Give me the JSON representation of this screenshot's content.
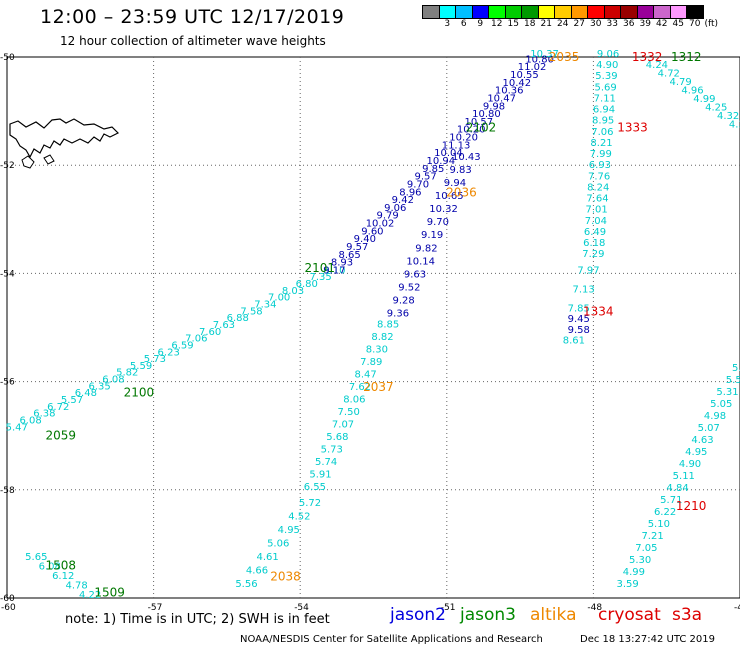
{
  "header": {
    "title": "12:00 – 23:59 UTC 12/17/2019",
    "subtitle": "12 hour collection of altimeter wave heights"
  },
  "scale": {
    "unit_label": "(ft)",
    "ticks": [
      "3",
      "6",
      "9",
      "12",
      "15",
      "18",
      "21",
      "24",
      "27",
      "30",
      "33",
      "36",
      "39",
      "42",
      "45",
      "70"
    ],
    "colors": [
      "#808080",
      "#00ffff",
      "#00bfff",
      "#0000ff",
      "#00ff00",
      "#00cc00",
      "#009900",
      "#ffff00",
      "#ffcc00",
      "#ff9900",
      "#ff0000",
      "#cc0000",
      "#990000",
      "#990099",
      "#cc66cc",
      "#ff99ff",
      "#000000"
    ]
  },
  "map": {
    "lat_labels": [
      "-50",
      "-52",
      "-54",
      "-56",
      "-58",
      "-60"
    ],
    "lon_labels": [
      "-60",
      "-57",
      "-54",
      "-51",
      "-48",
      "-45"
    ],
    "colors": {
      "cyan": "#00cccc",
      "blue": "#0000aa",
      "green": "#007700",
      "orange": "#ee8800",
      "red": "#dd0000",
      "land": "#000000"
    },
    "track_times": [
      {
        "text": "2035",
        "color": "orange",
        "lon": -48.6,
        "lat": -50.0
      },
      {
        "text": "1332",
        "color": "red",
        "lon": -46.9,
        "lat": -50.0
      },
      {
        "text": "1312",
        "color": "green",
        "lon": -46.1,
        "lat": -50.0
      },
      {
        "text": "2102",
        "color": "green",
        "lon": -50.3,
        "lat": -51.3
      },
      {
        "text": "1333",
        "color": "red",
        "lon": -47.2,
        "lat": -51.3
      },
      {
        "text": "2036",
        "color": "orange",
        "lon": -50.7,
        "lat": -52.5
      },
      {
        "text": "2101",
        "color": "green",
        "lon": -53.6,
        "lat": -53.9
      },
      {
        "text": "1334",
        "color": "red",
        "lon": -47.9,
        "lat": -54.7
      },
      {
        "text": "2100",
        "color": "green",
        "lon": -57.3,
        "lat": -56.2
      },
      {
        "text": "2037",
        "color": "orange",
        "lon": -52.4,
        "lat": -56.1
      },
      {
        "text": "2059",
        "color": "green",
        "lon": -58.9,
        "lat": -57.0
      },
      {
        "text": "1210",
        "color": "red",
        "lon": -46.0,
        "lat": -58.3
      },
      {
        "text": "2038",
        "color": "orange",
        "lon": -54.3,
        "lat": -59.6
      },
      {
        "text": "1508",
        "color": "green",
        "lon": -58.9,
        "lat": -59.4
      },
      {
        "text": "1509",
        "color": "green",
        "lon": -57.9,
        "lat": -59.9
      }
    ],
    "tracks": [
      {
        "name": "a",
        "color": "cyan",
        "lon0": -59.8,
        "lat0": -56.9,
        "lon1": -53.3,
        "lat1": -54.0,
        "values": [
          "5.47",
          "6.08",
          "6.38",
          "6.72",
          "5.57",
          "6.48",
          "6.35",
          "6.08",
          "5.82",
          "5.59",
          "5.73",
          "6.23",
          "6.59",
          "7.06",
          "7.60",
          "7.63",
          "6.88",
          "7.58",
          "7.34",
          "7.00",
          "8.03",
          "6.80",
          "7.35",
          "8.10"
        ]
      },
      {
        "name": "b",
        "color": "blue",
        "lon0": -53.3,
        "lat0": -54.0,
        "lon1": -49.1,
        "lat1": -50.1,
        "values": [
          "9.17",
          "8.93",
          "8.65",
          "9.57",
          "9.40",
          "9.60",
          "10.02",
          "9.79",
          "9.06",
          "9.42",
          "8.96",
          "9.70",
          "9.57",
          "9.85",
          "10.94",
          "10.04",
          "11.13",
          "10.20",
          "10.20",
          "10.57",
          "10.80",
          "9.98",
          "10.47",
          "10.36",
          "10.42",
          "10.55",
          "11.02",
          "10.80"
        ]
      },
      {
        "name": "b2",
        "color": "cyan",
        "lon0": -49.0,
        "lat0": -50.0,
        "lon1": -48.5,
        "lat1": -50.0,
        "values": [
          "10.37"
        ]
      },
      {
        "name": "c",
        "color": "blue",
        "lon0": -50.6,
        "lat0": -51.9,
        "lon1": -52.0,
        "lat1": -54.8,
        "values": [
          "10.43",
          "9.83",
          "9.94",
          "10.65",
          "10.32",
          "9.70",
          "9.19",
          "9.82",
          "10.14",
          "9.63",
          "9.52",
          "9.28",
          "9.36"
        ]
      },
      {
        "name": "d",
        "color": "cyan",
        "lon0": -52.2,
        "lat0": -55.0,
        "lon1": -53.7,
        "lat1": -58.0,
        "values": [
          "8.85",
          "8.82",
          "8.30",
          "7.89",
          "8.47",
          "7.62",
          "8.06",
          "7.50",
          "7.07",
          "5.68",
          "5.73",
          "5.74",
          "5.91",
          "6.55"
        ]
      },
      {
        "name": "e",
        "color": "cyan",
        "lon0": -53.8,
        "lat0": -58.3,
        "lon1": -55.1,
        "lat1": -59.8,
        "values": [
          "5.72",
          "4.52",
          "4.95",
          "5.06",
          "4.61",
          "4.66",
          "5.56"
        ]
      },
      {
        "name": "f",
        "color": "cyan",
        "lon0": -47.7,
        "lat0": -50.0,
        "lon1": -48.0,
        "lat1": -53.7,
        "values": [
          "9.06",
          "4.90",
          "5.39",
          "5.69",
          "7.11",
          "6.94",
          "8.95",
          "7.06",
          "8.21",
          "7.99",
          "6.93",
          "7.76",
          "8.24",
          "7.64",
          "7.01",
          "7.04",
          "6.49",
          "6.18",
          "7.29"
        ]
      },
      {
        "name": "g",
        "color": "cyan",
        "lon0": -48.1,
        "lat0": -54.0,
        "lon1": -48.3,
        "lat1": -54.7,
        "values": [
          "7.97",
          "7.13",
          "7.85"
        ]
      },
      {
        "name": "g2",
        "color": "blue",
        "lon0": -48.3,
        "lat0": -54.9,
        "lon1": -48.3,
        "lat1": -55.1,
        "values": [
          "9.45",
          "9.58"
        ]
      },
      {
        "name": "g3",
        "color": "cyan",
        "lon0": -48.4,
        "lat0": -55.3,
        "lon1": -48.4,
        "lat1": -55.3,
        "values": [
          "8.61"
        ]
      },
      {
        "name": "h",
        "color": "cyan",
        "lon0": -46.7,
        "lat0": -50.2,
        "lon1": -45.0,
        "lat1": -51.3,
        "values": [
          "4.24",
          "4.72",
          "4.79",
          "4.96",
          "4.99",
          "4.25",
          "4.32",
          "4.36"
        ]
      },
      {
        "name": "i",
        "color": "cyan",
        "lon0": -45.0,
        "lat0": -55.8,
        "lon1": -47.3,
        "lat1": -59.8,
        "values": [
          "5.3",
          "5.5",
          "5.31",
          "5.05",
          "4.98",
          "5.07",
          "4.63",
          "4.95",
          "4.90",
          "5.11",
          "4.84",
          "5.71",
          "6.22",
          "5.10",
          "7.21",
          "7.05",
          "5.30",
          "4.99",
          "3.59"
        ]
      },
      {
        "name": "j",
        "color": "cyan",
        "lon0": -59.4,
        "lat0": -59.3,
        "lon1": -58.3,
        "lat1": -60.0,
        "values": [
          "5.65",
          "6.08",
          "6.12",
          "4.78",
          "4.22"
        ]
      }
    ]
  },
  "legend": {
    "note": "note:  1) Time is in UTC;  2) SWH is in feet",
    "satellites": [
      {
        "name": "jason2",
        "color": "#0000dd"
      },
      {
        "name": "jason3",
        "color": "#008800"
      },
      {
        "name": "altika",
        "color": "#ee8800"
      },
      {
        "name": "cryosat",
        "color": "#dd0000"
      },
      {
        "name": "s3a",
        "color": "#dd0000"
      }
    ]
  },
  "footer": {
    "credit": "NOAA/NESDIS Center for Satellite Applications and Research",
    "date": "Dec 18 13:27:42 UTC 2019"
  }
}
